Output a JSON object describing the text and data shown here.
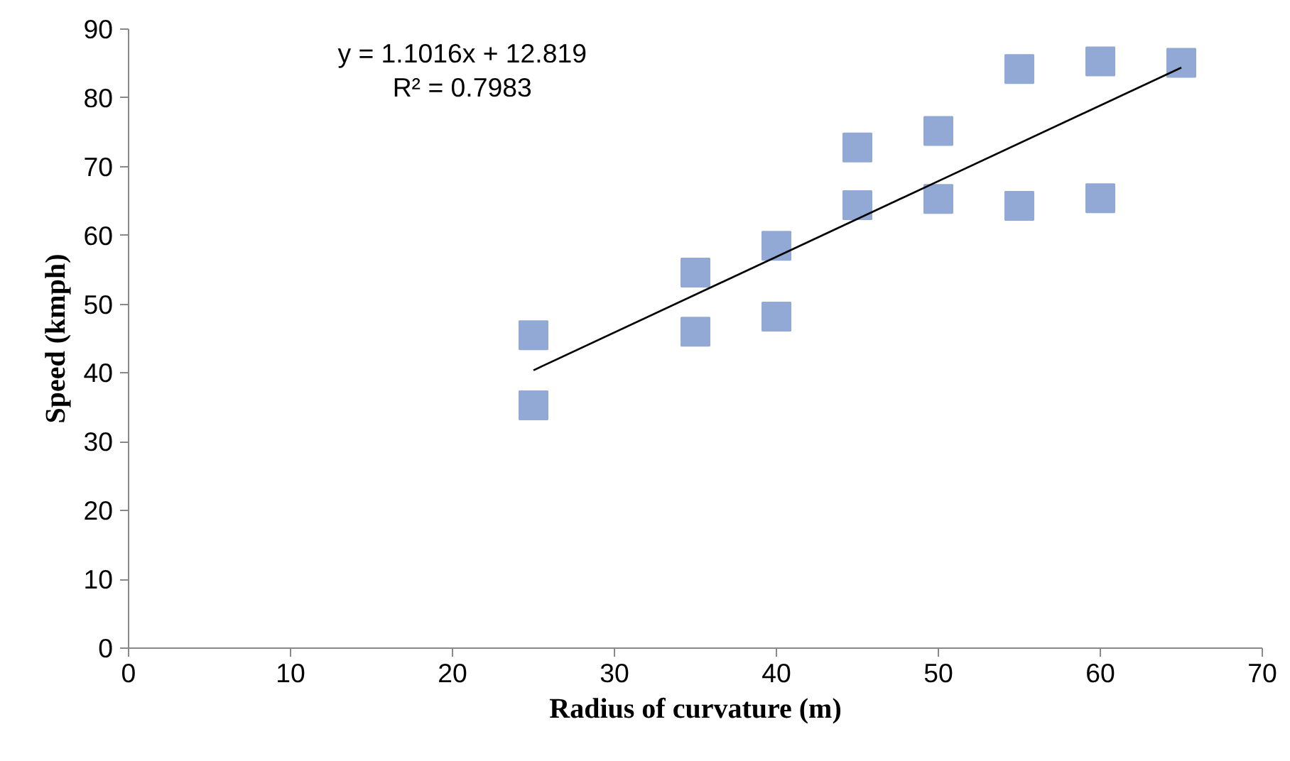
{
  "chart_data": {
    "type": "scatter",
    "xlabel": "Radius of curvature (m)",
    "ylabel": "Speed (kmph)",
    "annotations": [
      "y = 1.1016x + 12.819",
      "R² = 0.7983"
    ],
    "xlim": [
      0,
      70
    ],
    "xticks": [
      0,
      10,
      20,
      30,
      40,
      50,
      60,
      70
    ],
    "ylim": [
      0,
      90
    ],
    "yticks": [
      0,
      10,
      20,
      30,
      40,
      50,
      60,
      70,
      80,
      90
    ],
    "grid": false,
    "marker": "square",
    "series": [
      {
        "color": "#92a9d6",
        "x": [
          25,
          25,
          35,
          35,
          40,
          40,
          45,
          45,
          50,
          50,
          55,
          55,
          60,
          60,
          65
        ],
        "values": [
          45.5,
          35.3,
          54.6,
          46,
          58.5,
          48.2,
          72.8,
          64.4,
          75.2,
          65.3,
          84.2,
          64.3,
          85.3,
          65.4,
          85.1
        ]
      },
      {
        "type": "line",
        "color": "#000000",
        "x": [
          25,
          65
        ],
        "values": [
          40.4,
          84.4
        ],
        "line_style": "solid",
        "marker": "none"
      }
    ]
  }
}
